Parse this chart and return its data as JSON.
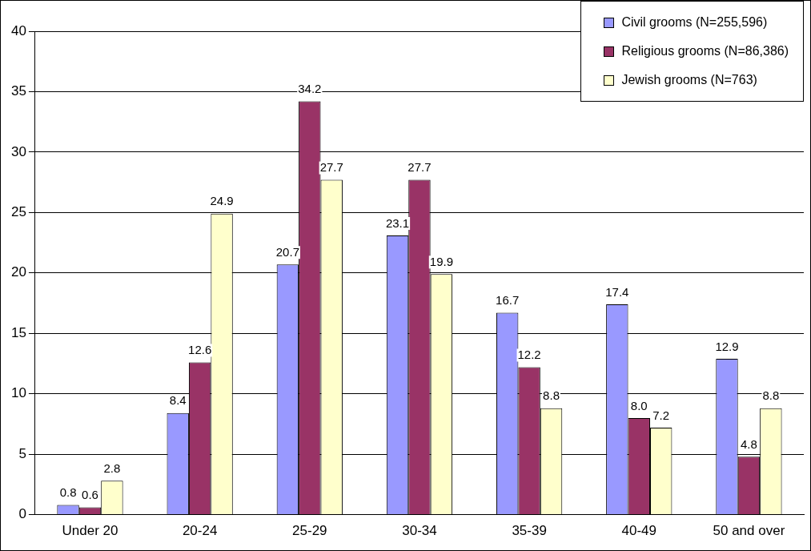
{
  "chart_data": {
    "type": "bar",
    "categories": [
      "Under 20",
      "20-24",
      "25-29",
      "30-34",
      "35-39",
      "40-49",
      "50 and over"
    ],
    "series": [
      {
        "name": "Civil grooms (N=255,596)",
        "color": "#9999ff",
        "values": [
          0.8,
          8.4,
          20.7,
          23.1,
          16.7,
          17.4,
          12.9
        ],
        "value_labels": [
          "0.8",
          "8.4",
          "20.7",
          "23.1",
          "16.7",
          "17.4",
          "12.9"
        ]
      },
      {
        "name": "Religious grooms (N=86,386)",
        "color": "#993366",
        "values": [
          0.6,
          12.6,
          34.2,
          27.7,
          12.2,
          8.0,
          4.8
        ],
        "value_labels": [
          "0.6",
          "12.6",
          "34.2",
          "27.7",
          "12.2",
          "8.0",
          "4.8"
        ]
      },
      {
        "name": "Jewish grooms (N=763)",
        "color": "#ffffcc",
        "values": [
          2.8,
          24.9,
          27.7,
          19.9,
          8.8,
          7.2,
          8.8
        ],
        "value_labels": [
          "2.8",
          "24.9",
          "27.7",
          "19.9",
          "8.8",
          "7.2",
          "8.8"
        ]
      }
    ],
    "ylim": [
      0,
      40
    ],
    "yticks": [
      0,
      5,
      10,
      15,
      20,
      25,
      30,
      35,
      40
    ],
    "grid": "y",
    "legend": "top right"
  }
}
